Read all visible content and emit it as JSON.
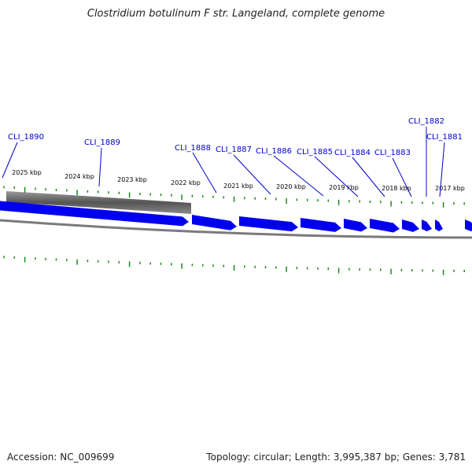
{
  "header": {
    "title": "Clostridium botulinum F str. Langeland, complete genome"
  },
  "footer": {
    "accession": "Accession: NC_009699",
    "topology": "Topology: circular; Length: 3,995,387 bp; Genes: 3,781"
  },
  "colors": {
    "gene_fill": "#0000ee",
    "gene_label": "#0000cc",
    "tick": "#1a8a1a",
    "backbone": "#7a7a7a",
    "selection": "#666666"
  },
  "kbp_labels": [
    "2025 kbp",
    "2024 kbp",
    "2023 kbp",
    "2022 kbp",
    "2021 kbp",
    "2020 kbp",
    "2019 kbp",
    "2018 kbp",
    "2017 kbp"
  ],
  "genes": [
    {
      "label": "CLI_1890",
      "strand": "forward"
    },
    {
      "label": "CLI_1889",
      "strand": "forward"
    },
    {
      "label": "CLI_1888",
      "strand": "forward"
    },
    {
      "label": "CLI_1887",
      "strand": "forward"
    },
    {
      "label": "CLI_1886",
      "strand": "forward"
    },
    {
      "label": "CLI_1885",
      "strand": "forward"
    },
    {
      "label": "CLI_1884",
      "strand": "forward"
    },
    {
      "label": "CLI_1883",
      "strand": "forward"
    },
    {
      "label": "CLI_1882",
      "strand": "forward"
    },
    {
      "label": "CLI_1881",
      "strand": "forward"
    }
  ]
}
